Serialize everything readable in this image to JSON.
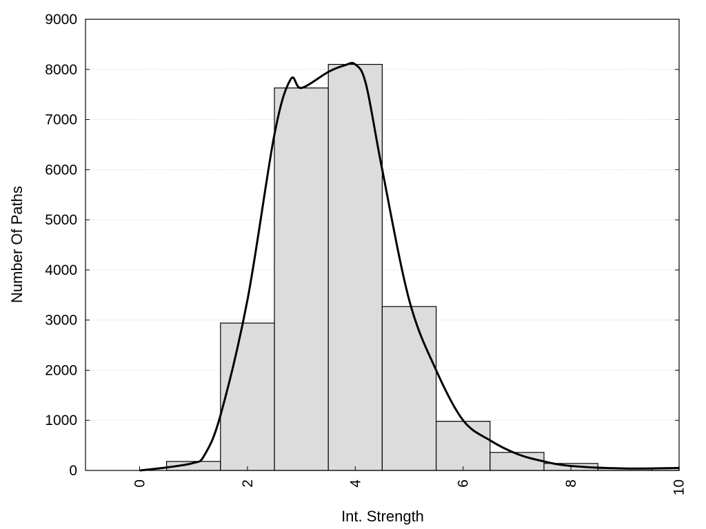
{
  "chart_data": {
    "type": "bar",
    "xlabel": "Int. Strength",
    "ylabel": "Number Of Paths",
    "xlim": [
      -1,
      10
    ],
    "ylim": [
      0,
      9000
    ],
    "x_ticks": [
      0,
      2,
      4,
      6,
      8,
      10
    ],
    "y_ticks": [
      0,
      1000,
      2000,
      3000,
      4000,
      5000,
      6000,
      7000,
      8000,
      9000
    ],
    "grid": "horizontal dotted",
    "bars": {
      "x": [
        0,
        1,
        2,
        3,
        4,
        5,
        6,
        7,
        8,
        9,
        10
      ],
      "values": [
        0,
        180,
        2940,
        7630,
        8100,
        3270,
        980,
        360,
        140,
        40,
        50
      ],
      "bin_width": 1,
      "color": "#dcdcdc"
    },
    "curve": {
      "type": "line",
      "color": "#000000",
      "x": [
        0,
        0.5,
        1,
        1.2,
        1.5,
        2,
        2.5,
        2.8,
        3,
        3.5,
        3.8,
        4,
        4.2,
        4.5,
        5,
        5.5,
        6,
        6.5,
        7,
        7.5,
        8,
        9,
        10
      ],
      "y": [
        0,
        60,
        150,
        300,
        1100,
        3400,
        6700,
        7800,
        7630,
        7950,
        8080,
        8100,
        7700,
        6000,
        3400,
        2000,
        1000,
        600,
        330,
        180,
        90,
        40,
        50
      ]
    }
  }
}
